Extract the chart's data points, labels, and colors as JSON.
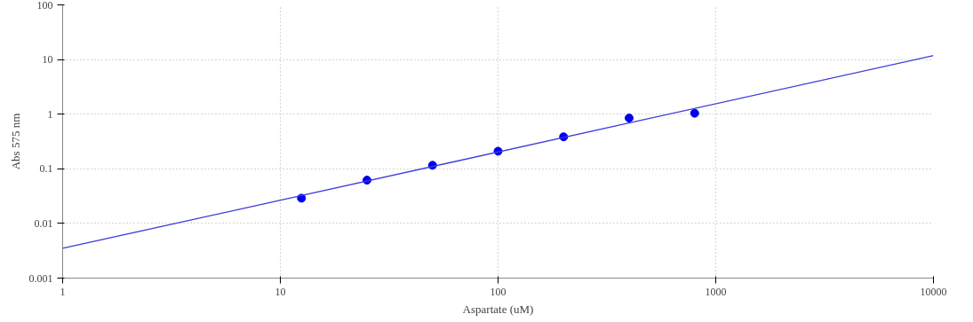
{
  "chart_data": {
    "type": "scatter",
    "xlabel": "Aspartate (uM)",
    "ylabel": "Abs 575 nm",
    "log": "xy",
    "grid": true,
    "xlim": [
      1,
      10000
    ],
    "ylim": [
      0.001,
      100
    ],
    "xticks": [
      1,
      10,
      100,
      1000,
      10000
    ],
    "yticks": [
      0.001,
      0.01,
      0.1,
      1,
      10,
      100
    ],
    "series": [
      {
        "marker": "circle",
        "color": "#0000ee",
        "x": [
          12.5,
          25,
          50,
          100,
          200,
          400,
          800
        ],
        "values": [
          0.029,
          0.062,
          0.116,
          0.21,
          0.385,
          0.85,
          1.04
        ]
      },
      {
        "type": "line",
        "color": "#3b3bdb",
        "line_style": "solid",
        "x": [
          1,
          10000
        ],
        "values": [
          0.0035,
          11.8
        ]
      }
    ]
  }
}
